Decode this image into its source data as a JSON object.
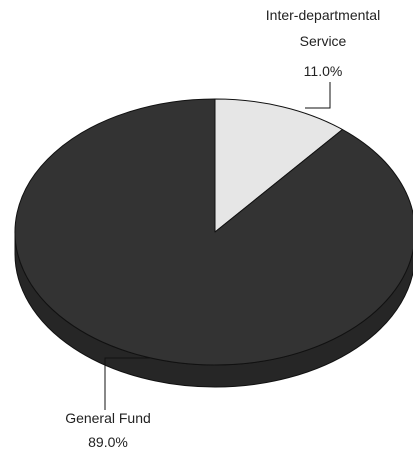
{
  "chart_data": {
    "type": "pie",
    "style": "3d",
    "title": "",
    "slices": [
      {
        "name_lines": [
          "Inter-departmental",
          "Service"
        ],
        "value": 11.0,
        "value_label": "11.0%",
        "color": "#e6e6e6",
        "side_color": "#bdbdbd"
      },
      {
        "name_lines": [
          "General Fund"
        ],
        "value": 89.0,
        "value_label": "89.0%",
        "color": "#333333",
        "side_color": "#262626"
      }
    ]
  }
}
